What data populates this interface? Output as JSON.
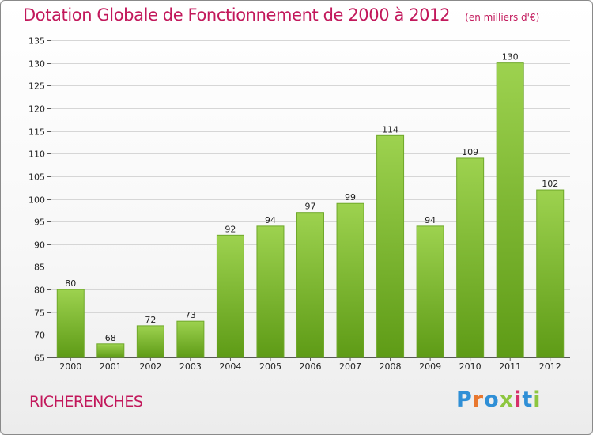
{
  "title": "Dotation Globale de Fonctionnement de 2000 à 2012",
  "unit_note": "(en milliers d'€)",
  "commune": "RICHERENCHES",
  "brand": {
    "text": "Proxiti",
    "letter_colors": [
      "#2f8fd6",
      "#e8772e",
      "#2f8fd6",
      "#8dc63f",
      "#d62f6b",
      "#2f8fd6",
      "#8dc63f"
    ]
  },
  "colors": {
    "accent": "#c2185b",
    "bar_top": "#9dd24f",
    "bar_bottom": "#5e9b16",
    "bar_stroke": "#6fa82a"
  },
  "chart_data": {
    "type": "bar",
    "title": "Dotation Globale de Fonctionnement de 2000 à 2012",
    "subtitle": "(en milliers d'€)",
    "xlabel": "",
    "ylabel": "",
    "categories": [
      "2000",
      "2001",
      "2002",
      "2003",
      "2004",
      "2005",
      "2006",
      "2007",
      "2008",
      "2009",
      "2010",
      "2011",
      "2012"
    ],
    "values": [
      80,
      68,
      72,
      73,
      92,
      94,
      97,
      99,
      114,
      94,
      109,
      130,
      102
    ],
    "ylim": [
      65,
      135
    ],
    "yticks": [
      65,
      70,
      75,
      80,
      85,
      90,
      95,
      100,
      105,
      110,
      115,
      120,
      125,
      130,
      135
    ],
    "grid": true,
    "data_labels": true
  }
}
